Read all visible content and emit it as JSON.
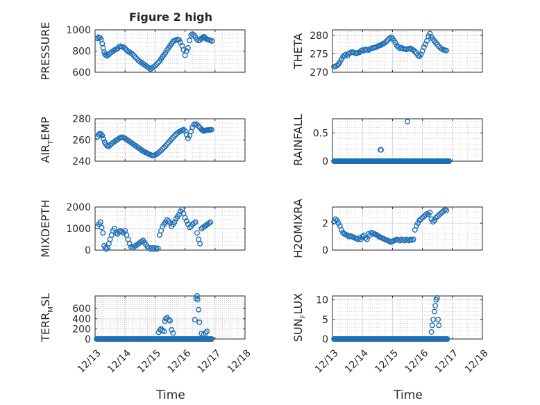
{
  "figure": {
    "title": "Figure 2 high",
    "xlabel": "Time",
    "colors": {
      "marker": "#1f6fb5",
      "axis": "#262626",
      "grid": "#d9d9d9",
      "minor_grid": "#b5b5b5",
      "background": "#ffffff"
    }
  },
  "chart_data": [
    {
      "type": "scatter",
      "panel": "pressure",
      "title": "Figure 2 high",
      "ylabel": "PRESSURE",
      "ylabel_parts": [
        "PRESSURE",
        "",
        ""
      ],
      "xlabel": "",
      "xlim": [
        0,
        5
      ],
      "ylim": [
        600,
        1000
      ],
      "yticks": [
        600,
        800,
        1000
      ],
      "yticklabels": [
        "600",
        "800",
        "1000"
      ],
      "xticks": [
        0,
        1,
        2,
        3,
        4,
        5
      ],
      "xticklabels": [
        "12/13",
        "12/14",
        "12/15",
        "12/16",
        "12/17",
        "12/18"
      ],
      "show_xticklabels": false,
      "grid": true,
      "minor_grid": true,
      "x": [
        0.08,
        0.12,
        0.16,
        0.2,
        0.24,
        0.27,
        0.3,
        0.33,
        0.36,
        0.4,
        0.45,
        0.5,
        0.55,
        0.6,
        0.65,
        0.7,
        0.75,
        0.8,
        0.85,
        0.9,
        0.95,
        1.0,
        1.05,
        1.1,
        1.15,
        1.2,
        1.25,
        1.3,
        1.35,
        1.4,
        1.45,
        1.5,
        1.55,
        1.6,
        1.65,
        1.7,
        1.75,
        1.8,
        1.85,
        1.9,
        1.95,
        2.0,
        2.05,
        2.1,
        2.15,
        2.2,
        2.25,
        2.3,
        2.35,
        2.4,
        2.45,
        2.5,
        2.55,
        2.6,
        2.65,
        2.7,
        2.75,
        2.8,
        2.85,
        2.9,
        2.95,
        3.0,
        3.05,
        3.1,
        3.15,
        3.2,
        3.25,
        3.3,
        3.35,
        3.4,
        3.45,
        3.5,
        3.55,
        3.6,
        3.63,
        3.65,
        3.67,
        3.7,
        3.75,
        3.8,
        3.85,
        3.9
      ],
      "y": [
        920,
        930,
        925,
        910,
        870,
        830,
        790,
        770,
        760,
        755,
        765,
        780,
        790,
        800,
        810,
        815,
        825,
        840,
        845,
        840,
        835,
        825,
        810,
        795,
        790,
        780,
        770,
        755,
        740,
        725,
        710,
        700,
        690,
        680,
        670,
        660,
        650,
        640,
        630,
        640,
        650,
        660,
        675,
        690,
        705,
        725,
        745,
        765,
        785,
        810,
        830,
        850,
        870,
        890,
        900,
        905,
        910,
        905,
        880,
        850,
        810,
        760,
        800,
        830,
        900,
        950,
        960,
        950,
        930,
        910,
        900,
        905,
        920,
        930,
        935,
        930,
        925,
        915,
        910,
        905,
        900,
        895
      ]
    },
    {
      "type": "scatter",
      "panel": "theta",
      "ylabel": "THETA",
      "ylabel_parts": [
        "THETA",
        "",
        ""
      ],
      "xlabel": "",
      "xlim": [
        0,
        5
      ],
      "ylim": [
        270,
        281.5
      ],
      "yticks": [
        270,
        275,
        280
      ],
      "yticklabels": [
        "270",
        "275",
        "280"
      ],
      "xticks": [
        0,
        1,
        2,
        3,
        4,
        5
      ],
      "xticklabels": [
        "12/13",
        "12/14",
        "12/15",
        "12/16",
        "12/17",
        "12/18"
      ],
      "show_xticklabels": false,
      "grid": true,
      "minor_grid": true,
      "x": [
        0.05,
        0.1,
        0.15,
        0.2,
        0.25,
        0.3,
        0.35,
        0.4,
        0.45,
        0.5,
        0.55,
        0.6,
        0.65,
        0.7,
        0.75,
        0.8,
        0.85,
        0.9,
        0.95,
        1.0,
        1.05,
        1.1,
        1.15,
        1.2,
        1.25,
        1.3,
        1.35,
        1.4,
        1.45,
        1.5,
        1.55,
        1.6,
        1.65,
        1.7,
        1.75,
        1.8,
        1.85,
        1.9,
        1.95,
        2.0,
        2.05,
        2.1,
        2.15,
        2.2,
        2.25,
        2.3,
        2.35,
        2.4,
        2.45,
        2.5,
        2.55,
        2.6,
        2.65,
        2.7,
        2.75,
        2.8,
        2.85,
        2.9,
        2.95,
        3.0,
        3.05,
        3.1,
        3.15,
        3.2,
        3.25,
        3.3,
        3.35,
        3.4,
        3.45,
        3.5,
        3.55,
        3.6,
        3.65,
        3.7,
        3.75,
        3.8
      ],
      "y": [
        271.5,
        271.6,
        271.8,
        272.2,
        272.8,
        273.5,
        274.2,
        274.6,
        274.8,
        274.5,
        275,
        275.3,
        275.5,
        275.4,
        275.2,
        275.1,
        275.3,
        275.4,
        275.8,
        276,
        275.9,
        276.2,
        276.1,
        276,
        276.3,
        276.5,
        276.6,
        276.7,
        276.8,
        277,
        277.2,
        277.3,
        277.6,
        277.8,
        278,
        278.4,
        278.8,
        279.2,
        279.5,
        279.2,
        278.6,
        278,
        277.2,
        276.8,
        276.5,
        276.7,
        276.4,
        276.3,
        276.2,
        276.3,
        276.4,
        276.5,
        276.2,
        276,
        275.6,
        275.2,
        274.6,
        274.3,
        274.8,
        275.8,
        276.8,
        277.6,
        278.5,
        279.8,
        280.5,
        279.6,
        279,
        278.5,
        278,
        277.5,
        277,
        276.6,
        276.3,
        276.1,
        276,
        275.9
      ]
    },
    {
      "type": "scatter",
      "panel": "air_temp",
      "ylabel": "AIR_TEMP",
      "ylabel_parts": [
        "AIR",
        "T",
        "EMP"
      ],
      "xlabel": "",
      "xlim": [
        0,
        5
      ],
      "ylim": [
        240,
        280
      ],
      "yticks": [
        240,
        260,
        280
      ],
      "yticklabels": [
        "240",
        "260",
        "280"
      ],
      "xticks": [
        0,
        1,
        2,
        3,
        4,
        5
      ],
      "xticklabels": [
        "12/13",
        "12/14",
        "12/15",
        "12/16",
        "12/17",
        "12/18"
      ],
      "show_xticklabels": false,
      "grid": true,
      "minor_grid": true,
      "x": [
        0.08,
        0.12,
        0.16,
        0.2,
        0.24,
        0.28,
        0.32,
        0.36,
        0.4,
        0.45,
        0.5,
        0.55,
        0.6,
        0.65,
        0.7,
        0.75,
        0.8,
        0.85,
        0.9,
        0.95,
        1.0,
        1.05,
        1.1,
        1.15,
        1.2,
        1.25,
        1.3,
        1.35,
        1.4,
        1.45,
        1.5,
        1.55,
        1.6,
        1.65,
        1.7,
        1.75,
        1.8,
        1.85,
        1.9,
        1.95,
        2.0,
        2.05,
        2.1,
        2.15,
        2.2,
        2.25,
        2.3,
        2.35,
        2.4,
        2.45,
        2.5,
        2.55,
        2.6,
        2.65,
        2.7,
        2.75,
        2.8,
        2.85,
        2.9,
        2.95,
        3.0,
        3.05,
        3.1,
        3.15,
        3.2,
        3.25,
        3.3,
        3.35,
        3.4,
        3.45,
        3.5,
        3.55,
        3.58,
        3.6,
        3.63,
        3.65,
        3.68,
        3.72,
        3.76,
        3.8,
        3.84,
        3.88
      ],
      "y": [
        263,
        265,
        266,
        265.5,
        264,
        261,
        258,
        256,
        254.5,
        254,
        255,
        256.5,
        257.5,
        258.5,
        259.5,
        260.5,
        261.5,
        262.3,
        262.6,
        262.2,
        261.5,
        260.5,
        259.5,
        258.5,
        257.5,
        256.5,
        255.5,
        254.5,
        253.5,
        252.5,
        251.5,
        250.5,
        249.5,
        248.8,
        248,
        247.3,
        246.6,
        246,
        245.4,
        245.2,
        245.8,
        246.6,
        247.6,
        248.8,
        250,
        251.4,
        252.8,
        254.4,
        256,
        257.6,
        259.2,
        260.8,
        262.4,
        264,
        265.4,
        266.6,
        267.6,
        268.4,
        269.2,
        269.8,
        268.5,
        265,
        261.5,
        264,
        268,
        272,
        274.5,
        275,
        274.2,
        273,
        271.5,
        270,
        269.2,
        268.8,
        268.5,
        268.7,
        269,
        269.3,
        269.4,
        269.5,
        269.6,
        269.7
      ]
    },
    {
      "type": "scatter",
      "panel": "rainfall",
      "ylabel": "RAINFALL",
      "ylabel_parts": [
        "RAINFALL",
        "",
        ""
      ],
      "xlabel": "",
      "xlim": [
        0,
        5
      ],
      "ylim": [
        0,
        0.75
      ],
      "yticks": [
        0,
        0.5
      ],
      "yticklabels": [
        "0",
        "0.5"
      ],
      "xticks": [
        0,
        1,
        2,
        3,
        4,
        5
      ],
      "xticklabels": [
        "12/13",
        "12/14",
        "12/15",
        "12/16",
        "12/17",
        "12/18"
      ],
      "show_xticklabels": false,
      "grid": true,
      "minor_grid": true,
      "baseline": {
        "y": 0,
        "x_from": 0.05,
        "x_to": 3.9,
        "step": 0.03
      },
      "x": [
        1.6,
        1.62,
        2.5
      ],
      "y": [
        0.2,
        0.2,
        0.7
      ]
    },
    {
      "type": "scatter",
      "panel": "mixdepth",
      "ylabel": "MIXDEPTH",
      "ylabel_parts": [
        "MIXDEPTH",
        "",
        ""
      ],
      "xlabel": "",
      "xlim": [
        0,
        5
      ],
      "ylim": [
        0,
        2000
      ],
      "yticks": [
        0,
        1000,
        2000
      ],
      "yticklabels": [
        "0",
        "1000",
        "2000"
      ],
      "xticks": [
        0,
        1,
        2,
        3,
        4,
        5
      ],
      "xticklabels": [
        "12/13",
        "12/14",
        "12/15",
        "12/16",
        "12/17",
        "12/18"
      ],
      "show_xticklabels": false,
      "grid": true,
      "minor_grid": true,
      "x": [
        0.08,
        0.13,
        0.18,
        0.22,
        0.26,
        0.3,
        0.34,
        0.38,
        0.42,
        0.46,
        0.5,
        0.55,
        0.6,
        0.65,
        0.7,
        0.75,
        0.8,
        0.85,
        0.9,
        0.95,
        1.0,
        1.05,
        1.1,
        1.15,
        1.2,
        1.25,
        1.3,
        1.35,
        1.4,
        1.45,
        1.5,
        1.55,
        1.6,
        1.65,
        1.7,
        1.75,
        1.8,
        1.85,
        1.9,
        1.95,
        2.0,
        2.05,
        2.1,
        2.15,
        2.2,
        2.25,
        2.3,
        2.35,
        2.4,
        2.45,
        2.5,
        2.55,
        2.6,
        2.65,
        2.7,
        2.75,
        2.8,
        2.85,
        2.9,
        2.95,
        3.0,
        3.05,
        3.1,
        3.15,
        3.2,
        3.25,
        3.3,
        3.35,
        3.4,
        3.45,
        3.5,
        3.55,
        3.6,
        3.65,
        3.7,
        3.75,
        3.8,
        3.85
      ],
      "y": [
        1100,
        1200,
        1300,
        1050,
        800,
        200,
        100,
        50,
        100,
        300,
        500,
        700,
        900,
        1000,
        800,
        750,
        850,
        900,
        850,
        800,
        900,
        700,
        500,
        300,
        150,
        100,
        150,
        200,
        250,
        300,
        350,
        400,
        450,
        350,
        250,
        150,
        100,
        50,
        100,
        50,
        100,
        50,
        80,
        700,
        900,
        1100,
        1200,
        1300,
        1400,
        1350,
        1250,
        1100,
        1200,
        1300,
        1450,
        1550,
        1650,
        1800,
        1900,
        1700,
        1500,
        1350,
        1200,
        1050,
        1100,
        1200,
        1250,
        1300,
        800,
        500,
        300,
        1000,
        1050,
        1100,
        1150,
        1200,
        1250,
        1300
      ]
    },
    {
      "type": "scatter",
      "panel": "h2omixra",
      "ylabel": "H2OMIXRA",
      "ylabel_parts": [
        "H2OMIXRA",
        "",
        ""
      ],
      "xlabel": "",
      "xlim": [
        0,
        5
      ],
      "ylim": [
        0,
        3.2
      ],
      "yticks": [
        0,
        2
      ],
      "yticklabels": [
        "0",
        "2"
      ],
      "xticks": [
        0,
        1,
        2,
        3,
        4,
        5
      ],
      "xticklabels": [
        "12/13",
        "12/14",
        "12/15",
        "12/16",
        "12/17",
        "12/18"
      ],
      "show_xticklabels": false,
      "grid": true,
      "minor_grid": true,
      "x": [
        0.05,
        0.1,
        0.15,
        0.2,
        0.25,
        0.3,
        0.35,
        0.4,
        0.45,
        0.5,
        0.55,
        0.6,
        0.65,
        0.7,
        0.75,
        0.8,
        0.85,
        0.9,
        0.95,
        1.0,
        1.05,
        1.1,
        1.15,
        1.2,
        1.25,
        1.3,
        1.35,
        1.4,
        1.45,
        1.5,
        1.55,
        1.6,
        1.65,
        1.7,
        1.75,
        1.8,
        1.85,
        1.9,
        1.95,
        2.0,
        2.05,
        2.1,
        2.15,
        2.2,
        2.25,
        2.3,
        2.35,
        2.4,
        2.45,
        2.5,
        2.55,
        2.6,
        2.65,
        2.7,
        2.75,
        2.8,
        2.85,
        2.9,
        2.95,
        3.0,
        3.05,
        3.1,
        3.15,
        3.2,
        3.25,
        3.3,
        3.35,
        3.4,
        3.45,
        3.5,
        3.55,
        3.6,
        3.65,
        3.7,
        3.75,
        3.8
      ],
      "y": [
        2.1,
        2.3,
        2.2,
        2.0,
        1.8,
        1.5,
        1.3,
        1.2,
        1.15,
        1.1,
        1.0,
        1.05,
        1.0,
        0.95,
        0.9,
        0.85,
        0.8,
        0.9,
        0.8,
        1.0,
        1.1,
        0.9,
        0.8,
        1.2,
        1.1,
        1.3,
        1.25,
        1.2,
        1.15,
        1.1,
        1.0,
        0.95,
        0.9,
        0.85,
        0.8,
        0.75,
        0.7,
        0.65,
        0.6,
        0.65,
        0.7,
        0.75,
        0.8,
        0.75,
        0.7,
        0.8,
        0.75,
        0.7,
        0.8,
        0.75,
        0.7,
        0.8,
        0.75,
        0.8,
        1.5,
        1.8,
        2.0,
        2.2,
        2.3,
        2.4,
        2.5,
        2.6,
        2.7,
        2.65,
        2.8,
        2.3,
        2.1,
        2.2,
        2.4,
        2.5,
        2.6,
        2.7,
        2.8,
        2.9,
        3.0,
        2.95
      ]
    },
    {
      "type": "scatter",
      "panel": "terr_msl",
      "ylabel": "TERR_MSL",
      "ylabel_parts": [
        "TERR",
        "M",
        "SL"
      ],
      "xlabel": "Time",
      "xlim": [
        0,
        5
      ],
      "ylim": [
        0,
        850
      ],
      "yticks": [
        0,
        200,
        400,
        600
      ],
      "yticklabels": [
        "0",
        "200",
        "400",
        "600"
      ],
      "xticks": [
        0,
        1,
        2,
        3,
        4,
        5
      ],
      "xticklabels": [
        "12/13",
        "12/14",
        "12/15",
        "12/16",
        "12/17",
        "12/18"
      ],
      "show_xticklabels": true,
      "grid": true,
      "minor_grid": true,
      "baseline": {
        "y": 0,
        "x_from": 0.05,
        "x_to": 3.9,
        "step": 0.03
      },
      "x": [
        2.12,
        2.17,
        2.2,
        2.25,
        2.3,
        2.33,
        2.36,
        2.4,
        2.46,
        2.5,
        2.55,
        2.6,
        3.33,
        3.37,
        3.4,
        3.42,
        3.45,
        3.48,
        3.55,
        3.62,
        3.68,
        3.73
      ],
      "y": [
        130,
        180,
        200,
        170,
        150,
        350,
        400,
        420,
        380,
        360,
        180,
        120,
        380,
        800,
        850,
        780,
        580,
        330,
        110,
        90,
        120,
        150
      ]
    },
    {
      "type": "scatter",
      "panel": "sun_flux",
      "ylabel": "SUN_FLUX",
      "ylabel_parts": [
        "SUN",
        "F",
        "LUX"
      ],
      "xlabel": "Time",
      "xlim": [
        0,
        5
      ],
      "ylim": [
        0,
        11
      ],
      "yticks": [
        0,
        5,
        10
      ],
      "yticklabels": [
        "0",
        "5",
        "10"
      ],
      "xticks": [
        0,
        1,
        2,
        3,
        4,
        5
      ],
      "xticklabels": [
        "12/13",
        "12/14",
        "12/15",
        "12/16",
        "12/17",
        "12/18"
      ],
      "show_xticklabels": true,
      "grid": true,
      "minor_grid": true,
      "baseline": {
        "y": 0,
        "x_from": 0.05,
        "x_to": 3.85,
        "step": 0.03
      },
      "x": [
        3.3,
        3.33,
        3.36,
        3.4,
        3.43,
        3.46,
        3.49,
        3.52,
        3.55
      ],
      "y": [
        1.8,
        3.5,
        5,
        7,
        8.5,
        10,
        10.5,
        5,
        3.5
      ]
    }
  ]
}
